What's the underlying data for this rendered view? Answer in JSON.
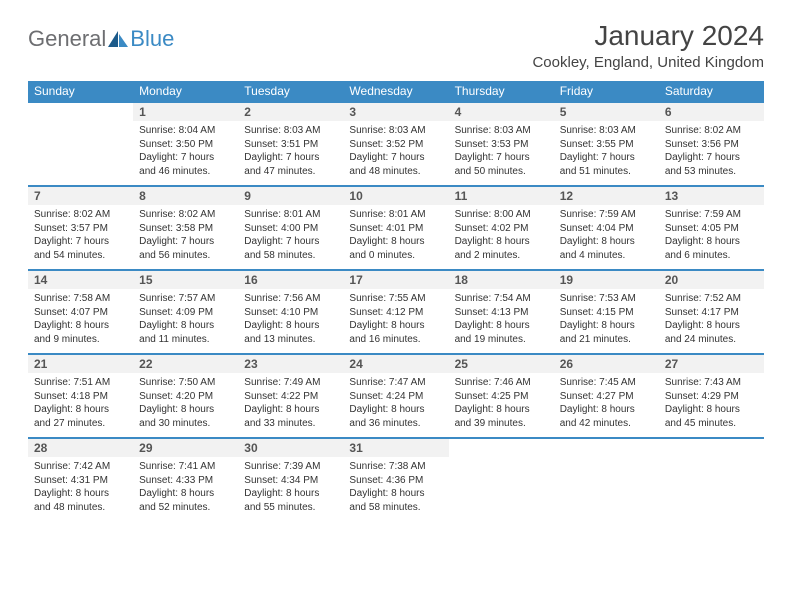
{
  "logo": {
    "general": "General",
    "blue": "Blue"
  },
  "title": "January 2024",
  "location": "Cookley, England, United Kingdom",
  "colors": {
    "header_bg": "#3b8ac4",
    "header_text": "#ffffff",
    "daynum_bg": "#f2f2f2",
    "row_border": "#3b8ac4",
    "body_text": "#333333",
    "page_bg": "#ffffff"
  },
  "daysOfWeek": [
    "Sunday",
    "Monday",
    "Tuesday",
    "Wednesday",
    "Thursday",
    "Friday",
    "Saturday"
  ],
  "weeks": [
    [
      null,
      {
        "n": "1",
        "sr": "8:04 AM",
        "ss": "3:50 PM",
        "dl": "7 hours and 46 minutes."
      },
      {
        "n": "2",
        "sr": "8:03 AM",
        "ss": "3:51 PM",
        "dl": "7 hours and 47 minutes."
      },
      {
        "n": "3",
        "sr": "8:03 AM",
        "ss": "3:52 PM",
        "dl": "7 hours and 48 minutes."
      },
      {
        "n": "4",
        "sr": "8:03 AM",
        "ss": "3:53 PM",
        "dl": "7 hours and 50 minutes."
      },
      {
        "n": "5",
        "sr": "8:03 AM",
        "ss": "3:55 PM",
        "dl": "7 hours and 51 minutes."
      },
      {
        "n": "6",
        "sr": "8:02 AM",
        "ss": "3:56 PM",
        "dl": "7 hours and 53 minutes."
      }
    ],
    [
      {
        "n": "7",
        "sr": "8:02 AM",
        "ss": "3:57 PM",
        "dl": "7 hours and 54 minutes."
      },
      {
        "n": "8",
        "sr": "8:02 AM",
        "ss": "3:58 PM",
        "dl": "7 hours and 56 minutes."
      },
      {
        "n": "9",
        "sr": "8:01 AM",
        "ss": "4:00 PM",
        "dl": "7 hours and 58 minutes."
      },
      {
        "n": "10",
        "sr": "8:01 AM",
        "ss": "4:01 PM",
        "dl": "8 hours and 0 minutes."
      },
      {
        "n": "11",
        "sr": "8:00 AM",
        "ss": "4:02 PM",
        "dl": "8 hours and 2 minutes."
      },
      {
        "n": "12",
        "sr": "7:59 AM",
        "ss": "4:04 PM",
        "dl": "8 hours and 4 minutes."
      },
      {
        "n": "13",
        "sr": "7:59 AM",
        "ss": "4:05 PM",
        "dl": "8 hours and 6 minutes."
      }
    ],
    [
      {
        "n": "14",
        "sr": "7:58 AM",
        "ss": "4:07 PM",
        "dl": "8 hours and 9 minutes."
      },
      {
        "n": "15",
        "sr": "7:57 AM",
        "ss": "4:09 PM",
        "dl": "8 hours and 11 minutes."
      },
      {
        "n": "16",
        "sr": "7:56 AM",
        "ss": "4:10 PM",
        "dl": "8 hours and 13 minutes."
      },
      {
        "n": "17",
        "sr": "7:55 AM",
        "ss": "4:12 PM",
        "dl": "8 hours and 16 minutes."
      },
      {
        "n": "18",
        "sr": "7:54 AM",
        "ss": "4:13 PM",
        "dl": "8 hours and 19 minutes."
      },
      {
        "n": "19",
        "sr": "7:53 AM",
        "ss": "4:15 PM",
        "dl": "8 hours and 21 minutes."
      },
      {
        "n": "20",
        "sr": "7:52 AM",
        "ss": "4:17 PM",
        "dl": "8 hours and 24 minutes."
      }
    ],
    [
      {
        "n": "21",
        "sr": "7:51 AM",
        "ss": "4:18 PM",
        "dl": "8 hours and 27 minutes."
      },
      {
        "n": "22",
        "sr": "7:50 AM",
        "ss": "4:20 PM",
        "dl": "8 hours and 30 minutes."
      },
      {
        "n": "23",
        "sr": "7:49 AM",
        "ss": "4:22 PM",
        "dl": "8 hours and 33 minutes."
      },
      {
        "n": "24",
        "sr": "7:47 AM",
        "ss": "4:24 PM",
        "dl": "8 hours and 36 minutes."
      },
      {
        "n": "25",
        "sr": "7:46 AM",
        "ss": "4:25 PM",
        "dl": "8 hours and 39 minutes."
      },
      {
        "n": "26",
        "sr": "7:45 AM",
        "ss": "4:27 PM",
        "dl": "8 hours and 42 minutes."
      },
      {
        "n": "27",
        "sr": "7:43 AM",
        "ss": "4:29 PM",
        "dl": "8 hours and 45 minutes."
      }
    ],
    [
      {
        "n": "28",
        "sr": "7:42 AM",
        "ss": "4:31 PM",
        "dl": "8 hours and 48 minutes."
      },
      {
        "n": "29",
        "sr": "7:41 AM",
        "ss": "4:33 PM",
        "dl": "8 hours and 52 minutes."
      },
      {
        "n": "30",
        "sr": "7:39 AM",
        "ss": "4:34 PM",
        "dl": "8 hours and 55 minutes."
      },
      {
        "n": "31",
        "sr": "7:38 AM",
        "ss": "4:36 PM",
        "dl": "8 hours and 58 minutes."
      },
      null,
      null,
      null
    ]
  ]
}
